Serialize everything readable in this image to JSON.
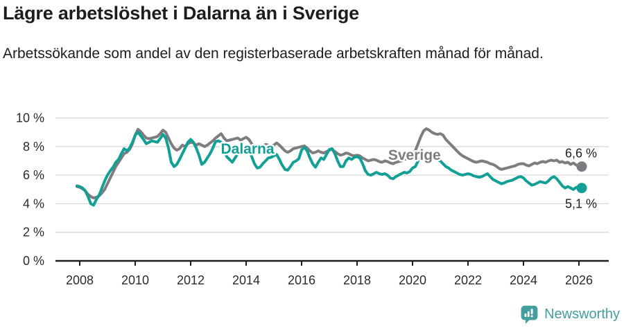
{
  "header": {
    "title": "Lägre arbetslöshet i Dalarna än i Sverige",
    "subtitle": "Arbetssökande som andel av den registerbaserade arbetskraften månad för månad."
  },
  "footer": {
    "brand": "Newsworthy",
    "brand_color": "#449E9C",
    "logo_icon": "newsworthy-chart-bubble-icon"
  },
  "chart_data": {
    "type": "line",
    "title": "Lägre arbetslöshet i Dalarna än i Sverige",
    "subtitle": "Arbetssökande som andel av den registerbaserade arbetskraften månad för månad.",
    "unit": "%",
    "grid": "horizontal",
    "legend": "inline-labels",
    "xlim": [
      2007.7,
      2027.1
    ],
    "ylim": [
      0,
      10.5
    ],
    "x_ticks": [
      2008,
      2010,
      2012,
      2014,
      2016,
      2018,
      2020,
      2022,
      2024,
      2026
    ],
    "y_tick_values": [
      0,
      2,
      4,
      6,
      8,
      10
    ],
    "y_tick_labels": [
      "0 %",
      "2 %",
      "4 %",
      "6 %",
      "8 %",
      "10 %"
    ],
    "axis_color": "#1d1d1b",
    "grid_color": "#d8d8d8",
    "series": [
      {
        "name": "Sverige",
        "color": "#7E7C80",
        "end_label": "6,6 %",
        "end_value": 6.6,
        "end_label_side": "above",
        "label_pos": {
          "year": 2020.07,
          "value": 7.4
        },
        "start": 2007.9,
        "step": 0.1,
        "values": [
          5.2,
          5.15,
          5.05,
          4.9,
          4.65,
          4.5,
          4.4,
          4.45,
          4.55,
          4.75,
          5.0,
          5.4,
          5.8,
          6.2,
          6.6,
          6.9,
          7.2,
          7.5,
          7.6,
          7.8,
          8.2,
          8.8,
          9.2,
          9.05,
          8.8,
          8.6,
          8.55,
          8.6,
          8.65,
          8.7,
          8.9,
          9.15,
          9.0,
          8.6,
          8.2,
          7.9,
          7.75,
          7.85,
          8.1,
          8.0,
          8.2,
          8.3,
          8.25,
          8.1,
          8.2,
          8.1,
          8.0,
          8.1,
          8.25,
          8.4,
          8.6,
          8.75,
          8.9,
          8.6,
          8.4,
          8.45,
          8.5,
          8.55,
          8.6,
          8.45,
          8.55,
          8.65,
          8.5,
          8.2,
          7.9,
          7.75,
          7.85,
          8.0,
          8.15,
          8.1,
          8.05,
          8.1,
          8.25,
          8.1,
          7.9,
          7.7,
          7.6,
          7.7,
          7.85,
          7.9,
          7.95,
          8.0,
          8.05,
          7.9,
          7.7,
          7.55,
          7.6,
          7.7,
          7.6,
          7.55,
          7.65,
          7.75,
          7.8,
          7.65,
          7.5,
          7.4,
          7.45,
          7.55,
          7.5,
          7.4,
          7.35,
          7.4,
          7.35,
          7.2,
          7.1,
          7.0,
          7.05,
          7.1,
          7.05,
          6.95,
          6.9,
          7.0,
          6.95,
          6.85,
          6.8,
          6.9,
          6.95,
          7.0,
          7.1,
          7.15,
          7.25,
          7.5,
          7.7,
          8.2,
          8.7,
          9.1,
          9.25,
          9.15,
          9.0,
          8.9,
          8.85,
          8.9,
          8.8,
          8.5,
          8.3,
          8.1,
          7.9,
          7.7,
          7.5,
          7.35,
          7.25,
          7.15,
          7.05,
          6.95,
          6.9,
          6.95,
          7.0,
          6.95,
          6.9,
          6.8,
          6.75,
          6.65,
          6.5,
          6.4,
          6.45,
          6.5,
          6.55,
          6.6,
          6.65,
          6.75,
          6.8,
          6.8,
          6.7,
          6.65,
          6.75,
          6.85,
          6.8,
          6.9,
          6.95,
          6.9,
          7.0,
          7.05,
          7.0,
          7.05,
          6.9,
          6.95,
          6.85,
          6.9,
          6.75,
          6.85,
          6.7,
          6.65,
          6.6
        ]
      },
      {
        "name": "Dalarna",
        "color": "#12A095",
        "end_label": "5,1 %",
        "end_value": 5.1,
        "end_label_side": "below",
        "label_pos": {
          "year": 2014.05,
          "value": 7.85
        },
        "start": 2007.9,
        "step": 0.1,
        "values": [
          5.25,
          5.2,
          5.1,
          4.9,
          4.5,
          4.0,
          3.9,
          4.3,
          4.6,
          5.1,
          5.6,
          6.0,
          6.3,
          6.55,
          6.9,
          7.1,
          7.5,
          7.85,
          7.7,
          7.9,
          8.3,
          8.8,
          9.0,
          8.75,
          8.5,
          8.2,
          8.3,
          8.4,
          8.35,
          8.3,
          8.55,
          8.85,
          8.6,
          7.9,
          6.9,
          6.6,
          6.75,
          7.1,
          7.5,
          7.9,
          8.3,
          8.5,
          8.3,
          7.9,
          7.4,
          6.75,
          6.9,
          7.2,
          7.5,
          7.9,
          8.35,
          8.4,
          8.3,
          7.8,
          7.3,
          7.1,
          6.9,
          7.2,
          7.5,
          7.7,
          7.8,
          8.0,
          7.8,
          7.3,
          6.8,
          6.5,
          6.55,
          6.8,
          7.0,
          7.2,
          7.25,
          7.35,
          7.45,
          7.1,
          6.7,
          6.4,
          6.35,
          6.6,
          6.9,
          7.0,
          7.15,
          7.75,
          7.95,
          7.7,
          7.2,
          6.8,
          6.55,
          6.9,
          7.2,
          7.1,
          7.45,
          7.8,
          7.85,
          7.5,
          7.0,
          6.6,
          6.6,
          7.0,
          7.2,
          7.1,
          7.25,
          7.3,
          7.2,
          6.8,
          6.3,
          6.05,
          6.0,
          6.1,
          6.2,
          6.1,
          6.05,
          6.1,
          6.0,
          5.8,
          5.75,
          5.9,
          6.0,
          6.1,
          6.2,
          6.15,
          6.25,
          6.5,
          6.6,
          7.0,
          7.3,
          7.5,
          7.55,
          7.45,
          7.3,
          7.15,
          7.05,
          7.0,
          6.8,
          6.6,
          6.5,
          6.35,
          6.25,
          6.15,
          6.05,
          6.0,
          6.05,
          6.1,
          6.05,
          5.95,
          5.9,
          5.85,
          5.9,
          6.0,
          6.1,
          5.9,
          5.7,
          5.6,
          5.5,
          5.4,
          5.45,
          5.55,
          5.6,
          5.65,
          5.75,
          5.85,
          5.9,
          5.8,
          5.6,
          5.45,
          5.3,
          5.35,
          5.45,
          5.55,
          5.5,
          5.45,
          5.6,
          5.8,
          5.9,
          5.75,
          5.5,
          5.25,
          5.1,
          5.2,
          5.1,
          5.0,
          5.15,
          5.05,
          5.1
        ]
      }
    ]
  }
}
